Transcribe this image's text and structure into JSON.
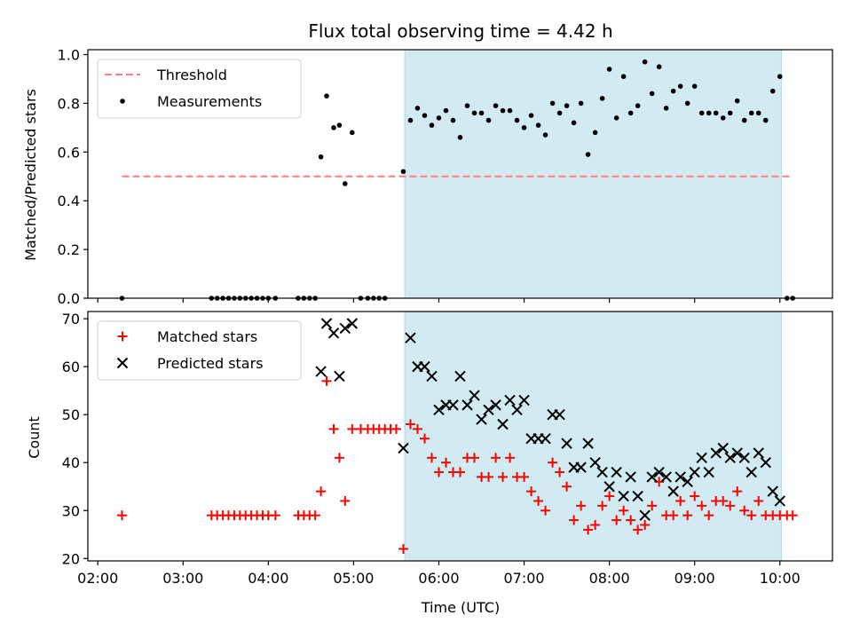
{
  "chart_data": [
    {
      "type": "scatter",
      "title": "Flux total observing time = 4.42 h",
      "xlabel": "",
      "ylabel": "Matched/Predicted stars",
      "xlim": [
        "01:53",
        "10:37"
      ],
      "ylim": [
        0,
        1.02
      ],
      "yticks": [
        "0.0",
        "0.2",
        "0.4",
        "0.6",
        "0.8",
        "1.0"
      ],
      "xticks": [
        "02:00",
        "03:00",
        "04:00",
        "05:00",
        "06:00",
        "07:00",
        "08:00",
        "09:00",
        "10:00"
      ],
      "shaded_region": {
        "x": [
          "05:36",
          "10:01"
        ],
        "color": "#add8e6"
      },
      "legend": {
        "placement": "upper-left"
      },
      "series": [
        {
          "name": "Threshold",
          "style": "dashed-line",
          "color": "#ff7f7f",
          "x": [
            "02:17",
            "10:09"
          ],
          "y": [
            0.5,
            0.5
          ]
        },
        {
          "name": "Measurements",
          "style": "points",
          "color": "#000000",
          "points": [
            [
              "02:17",
              0
            ],
            [
              "03:20",
              0
            ],
            [
              "03:24",
              0
            ],
            [
              "03:28",
              0
            ],
            [
              "03:32",
              0
            ],
            [
              "03:36",
              0
            ],
            [
              "03:40",
              0
            ],
            [
              "03:44",
              0
            ],
            [
              "03:48",
              0
            ],
            [
              "03:52",
              0
            ],
            [
              "03:56",
              0
            ],
            [
              "04:00",
              0
            ],
            [
              "04:05",
              0
            ],
            [
              "04:21",
              0
            ],
            [
              "04:25",
              0
            ],
            [
              "04:29",
              0
            ],
            [
              "04:33",
              0
            ],
            [
              "04:37",
              0.58
            ],
            [
              "04:41",
              0.83
            ],
            [
              "04:46",
              0.7
            ],
            [
              "04:50",
              0.71
            ],
            [
              "04:54",
              0.47
            ],
            [
              "04:59",
              0.68
            ],
            [
              "05:05",
              0
            ],
            [
              "05:10",
              0
            ],
            [
              "05:14",
              0
            ],
            [
              "05:18",
              0
            ],
            [
              "05:22",
              0
            ],
            [
              "05:35",
              0.52
            ],
            [
              "05:40",
              0.73
            ],
            [
              "05:45",
              0.78
            ],
            [
              "05:50",
              0.75
            ],
            [
              "05:55",
              0.71
            ],
            [
              "06:00",
              0.74
            ],
            [
              "06:05",
              0.77
            ],
            [
              "06:10",
              0.73
            ],
            [
              "06:15",
              0.66
            ],
            [
              "06:20",
              0.79
            ],
            [
              "06:25",
              0.76
            ],
            [
              "06:30",
              0.76
            ],
            [
              "06:35",
              0.73
            ],
            [
              "06:40",
              0.79
            ],
            [
              "06:45",
              0.77
            ],
            [
              "06:50",
              0.77
            ],
            [
              "06:55",
              0.73
            ],
            [
              "07:00",
              0.7
            ],
            [
              "07:05",
              0.75
            ],
            [
              "07:10",
              0.71
            ],
            [
              "07:15",
              0.67
            ],
            [
              "07:20",
              0.8
            ],
            [
              "07:25",
              0.76
            ],
            [
              "07:30",
              0.79
            ],
            [
              "07:35",
              0.72
            ],
            [
              "07:40",
              0.8
            ],
            [
              "07:45",
              0.59
            ],
            [
              "07:50",
              0.68
            ],
            [
              "07:55",
              0.82
            ],
            [
              "08:00",
              0.94
            ],
            [
              "08:05",
              0.74
            ],
            [
              "08:10",
              0.91
            ],
            [
              "08:15",
              0.76
            ],
            [
              "08:20",
              0.79
            ],
            [
              "08:25",
              0.97
            ],
            [
              "08:30",
              0.84
            ],
            [
              "08:35",
              0.95
            ],
            [
              "08:40",
              0.78
            ],
            [
              "08:45",
              0.85
            ],
            [
              "08:50",
              0.87
            ],
            [
              "08:55",
              0.8
            ],
            [
              "09:00",
              0.87
            ],
            [
              "09:05",
              0.76
            ],
            [
              "09:10",
              0.76
            ],
            [
              "09:15",
              0.76
            ],
            [
              "09:20",
              0.74
            ],
            [
              "09:25",
              0.76
            ],
            [
              "09:30",
              0.81
            ],
            [
              "09:35",
              0.73
            ],
            [
              "09:40",
              0.76
            ],
            [
              "09:45",
              0.76
            ],
            [
              "09:50",
              0.73
            ],
            [
              "09:55",
              0.85
            ],
            [
              "10:00",
              0.91
            ],
            [
              "10:05",
              0
            ],
            [
              "10:09",
              0
            ]
          ]
        }
      ]
    },
    {
      "type": "scatter",
      "title": "",
      "xlabel": "Time (UTC)",
      "ylabel": "Count",
      "xlim": [
        "01:53",
        "10:37"
      ],
      "ylim": [
        19.5,
        71.5
      ],
      "yticks": [
        "20",
        "30",
        "40",
        "50",
        "60",
        "70"
      ],
      "xticks": [
        "02:00",
        "03:00",
        "04:00",
        "05:00",
        "06:00",
        "07:00",
        "08:00",
        "09:00",
        "10:00"
      ],
      "shaded_region": {
        "x": [
          "05:36",
          "10:01"
        ],
        "color": "#add8e6"
      },
      "legend": {
        "placement": "upper-left"
      },
      "series": [
        {
          "name": "Matched stars",
          "marker": "plus",
          "color": "#ff0000",
          "points": [
            [
              "02:17",
              29
            ],
            [
              "03:20",
              29
            ],
            [
              "03:24",
              29
            ],
            [
              "03:28",
              29
            ],
            [
              "03:32",
              29
            ],
            [
              "03:36",
              29
            ],
            [
              "03:40",
              29
            ],
            [
              "03:44",
              29
            ],
            [
              "03:48",
              29
            ],
            [
              "03:52",
              29
            ],
            [
              "03:56",
              29
            ],
            [
              "04:00",
              29
            ],
            [
              "04:05",
              29
            ],
            [
              "04:21",
              29
            ],
            [
              "04:25",
              29
            ],
            [
              "04:29",
              29
            ],
            [
              "04:33",
              29
            ],
            [
              "04:37",
              34
            ],
            [
              "04:41",
              57
            ],
            [
              "04:46",
              47
            ],
            [
              "04:50",
              41
            ],
            [
              "04:54",
              32
            ],
            [
              "04:59",
              47
            ],
            [
              "05:05",
              47
            ],
            [
              "05:10",
              47
            ],
            [
              "05:14",
              47
            ],
            [
              "05:18",
              47
            ],
            [
              "05:22",
              47
            ],
            [
              "05:26",
              47
            ],
            [
              "05:30",
              47
            ],
            [
              "05:35",
              22
            ],
            [
              "05:40",
              48
            ],
            [
              "05:45",
              47
            ],
            [
              "05:50",
              45
            ],
            [
              "05:55",
              41
            ],
            [
              "06:00",
              38
            ],
            [
              "06:05",
              40
            ],
            [
              "06:10",
              38
            ],
            [
              "06:15",
              38
            ],
            [
              "06:20",
              41
            ],
            [
              "06:25",
              41
            ],
            [
              "06:30",
              37
            ],
            [
              "06:35",
              37
            ],
            [
              "06:40",
              41
            ],
            [
              "06:45",
              37
            ],
            [
              "06:50",
              41
            ],
            [
              "06:55",
              37
            ],
            [
              "07:00",
              37
            ],
            [
              "07:05",
              34
            ],
            [
              "07:10",
              32
            ],
            [
              "07:15",
              30
            ],
            [
              "07:20",
              40
            ],
            [
              "07:25",
              38
            ],
            [
              "07:30",
              35
            ],
            [
              "07:35",
              28
            ],
            [
              "07:40",
              31
            ],
            [
              "07:45",
              26
            ],
            [
              "07:50",
              27
            ],
            [
              "07:55",
              31
            ],
            [
              "08:00",
              33
            ],
            [
              "08:05",
              28
            ],
            [
              "08:10",
              30
            ],
            [
              "08:15",
              28
            ],
            [
              "08:20",
              26
            ],
            [
              "08:25",
              27
            ],
            [
              "08:30",
              31
            ],
            [
              "08:35",
              36
            ],
            [
              "08:40",
              29
            ],
            [
              "08:45",
              29
            ],
            [
              "08:50",
              32
            ],
            [
              "08:55",
              29
            ],
            [
              "09:00",
              33
            ],
            [
              "09:05",
              31
            ],
            [
              "09:10",
              29
            ],
            [
              "09:15",
              32
            ],
            [
              "09:20",
              32
            ],
            [
              "09:25",
              31
            ],
            [
              "09:30",
              34
            ],
            [
              "09:35",
              30
            ],
            [
              "09:40",
              29
            ],
            [
              "09:45",
              32
            ],
            [
              "09:50",
              29
            ],
            [
              "09:55",
              29
            ],
            [
              "10:00",
              29
            ],
            [
              "10:05",
              29
            ],
            [
              "10:09",
              29
            ]
          ]
        },
        {
          "name": "Predicted stars",
          "marker": "x",
          "color": "#000000",
          "points": [
            [
              "04:37",
              59
            ],
            [
              "04:41",
              69
            ],
            [
              "04:46",
              67
            ],
            [
              "04:50",
              58
            ],
            [
              "04:54",
              68
            ],
            [
              "04:59",
              69
            ],
            [
              "05:35",
              43
            ],
            [
              "05:40",
              66
            ],
            [
              "05:45",
              60
            ],
            [
              "05:50",
              60
            ],
            [
              "05:55",
              58
            ],
            [
              "06:00",
              51
            ],
            [
              "06:05",
              52
            ],
            [
              "06:10",
              52
            ],
            [
              "06:15",
              58
            ],
            [
              "06:20",
              52
            ],
            [
              "06:25",
              54
            ],
            [
              "06:30",
              49
            ],
            [
              "06:35",
              51
            ],
            [
              "06:40",
              52
            ],
            [
              "06:45",
              48
            ],
            [
              "06:50",
              53
            ],
            [
              "06:55",
              51
            ],
            [
              "07:00",
              53
            ],
            [
              "07:05",
              45
            ],
            [
              "07:10",
              45
            ],
            [
              "07:15",
              45
            ],
            [
              "07:20",
              50
            ],
            [
              "07:25",
              50
            ],
            [
              "07:30",
              44
            ],
            [
              "07:35",
              39
            ],
            [
              "07:40",
              39
            ],
            [
              "07:45",
              44
            ],
            [
              "07:50",
              40
            ],
            [
              "07:55",
              38
            ],
            [
              "08:00",
              35
            ],
            [
              "08:05",
              38
            ],
            [
              "08:10",
              33
            ],
            [
              "08:15",
              37
            ],
            [
              "08:20",
              33
            ],
            [
              "08:25",
              29
            ],
            [
              "08:30",
              37
            ],
            [
              "08:35",
              38
            ],
            [
              "08:40",
              37
            ],
            [
              "08:45",
              34
            ],
            [
              "08:50",
              37
            ],
            [
              "08:55",
              36
            ],
            [
              "09:00",
              38
            ],
            [
              "09:05",
              41
            ],
            [
              "09:10",
              38
            ],
            [
              "09:15",
              42
            ],
            [
              "09:20",
              43
            ],
            [
              "09:25",
              41
            ],
            [
              "09:30",
              42
            ],
            [
              "09:35",
              41
            ],
            [
              "09:40",
              38
            ],
            [
              "09:45",
              42
            ],
            [
              "09:50",
              40
            ],
            [
              "09:55",
              34
            ],
            [
              "10:00",
              32
            ]
          ]
        }
      ]
    }
  ]
}
